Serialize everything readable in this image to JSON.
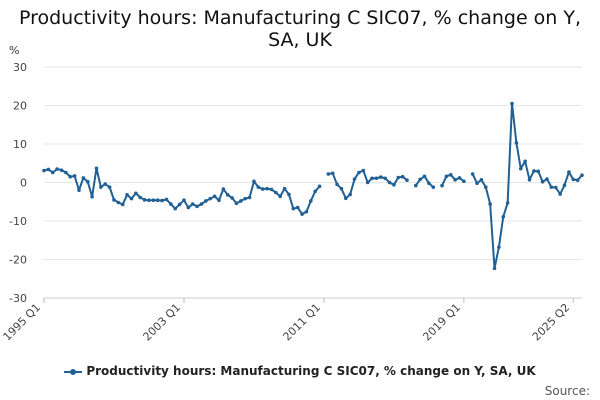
{
  "title_lines": [
    "Productivity hours: Manufacturing C SIC07, % change on Y,",
    "SA, UK"
  ],
  "source_label": "Source:",
  "chart_data": {
    "type": "line",
    "title": "Productivity hours: Manufacturing C SIC07, % change on Y, SA, UK",
    "ylabel": "%",
    "xlabel": "",
    "ylim": [
      -30,
      30
    ],
    "yticks": [
      -30,
      -20,
      -10,
      0,
      10,
      20,
      30
    ],
    "xtick_labels": [
      "1995 Q1",
      "2003 Q1",
      "2011 Q1",
      "2019 Q1",
      "2025 Q2"
    ],
    "grid": true,
    "legend_position": "bottom",
    "color": "#206095",
    "series": [
      {
        "name": "Productivity hours: Manufacturing C SIC07, % change on Y, SA, UK",
        "x_start": "1995 Q1",
        "frequency": "quarterly",
        "values": [
          3.1,
          3.4,
          2.6,
          3.5,
          3.2,
          2.6,
          1.5,
          1.7,
          -2.0,
          1.2,
          0.2,
          -3.7,
          3.7,
          -1.2,
          -0.4,
          -1.2,
          -4.5,
          -5.2,
          -5.7,
          -3.2,
          -4.2,
          -2.8,
          -3.9,
          -4.5,
          -4.6,
          -4.6,
          -4.6,
          -4.7,
          -4.4,
          -5.6,
          -6.8,
          -5.7,
          -4.6,
          -6.5,
          -5.6,
          -6.2,
          -5.6,
          -4.8,
          -4.2,
          -3.6,
          -4.6,
          -1.7,
          -3.2,
          -4.0,
          -5.4,
          -4.8,
          -4.2,
          -3.9,
          0.3,
          -1.2,
          -1.7,
          -1.6,
          -1.8,
          -2.6,
          -3.6,
          -1.6,
          -3.1,
          -6.8,
          -6.5,
          -8.2,
          -7.6,
          -4.8,
          -2.3,
          -1.0,
          null,
          2.2,
          2.4,
          -0.5,
          -1.6,
          -4.1,
          -3.1,
          0.9,
          2.6,
          3.1,
          0.0,
          1.1,
          1.1,
          1.4,
          1.1,
          0.0,
          -0.6,
          1.3,
          1.5,
          0.6,
          null,
          -0.8,
          0.8,
          1.6,
          -0.2,
          -1.2,
          null,
          -0.8,
          1.6,
          2.0,
          0.7,
          1.2,
          0.3,
          null,
          2.2,
          -0.2,
          0.7,
          -1.2,
          -5.6,
          -22.3,
          -16.8,
          -8.9,
          -5.3,
          20.5,
          10.3,
          3.6,
          5.5,
          0.7,
          3.0,
          2.9,
          0.2,
          0.9,
          -1.2,
          -1.3,
          -3.0,
          -0.7,
          2.7,
          0.8,
          0.6,
          1.9
        ]
      }
    ]
  }
}
